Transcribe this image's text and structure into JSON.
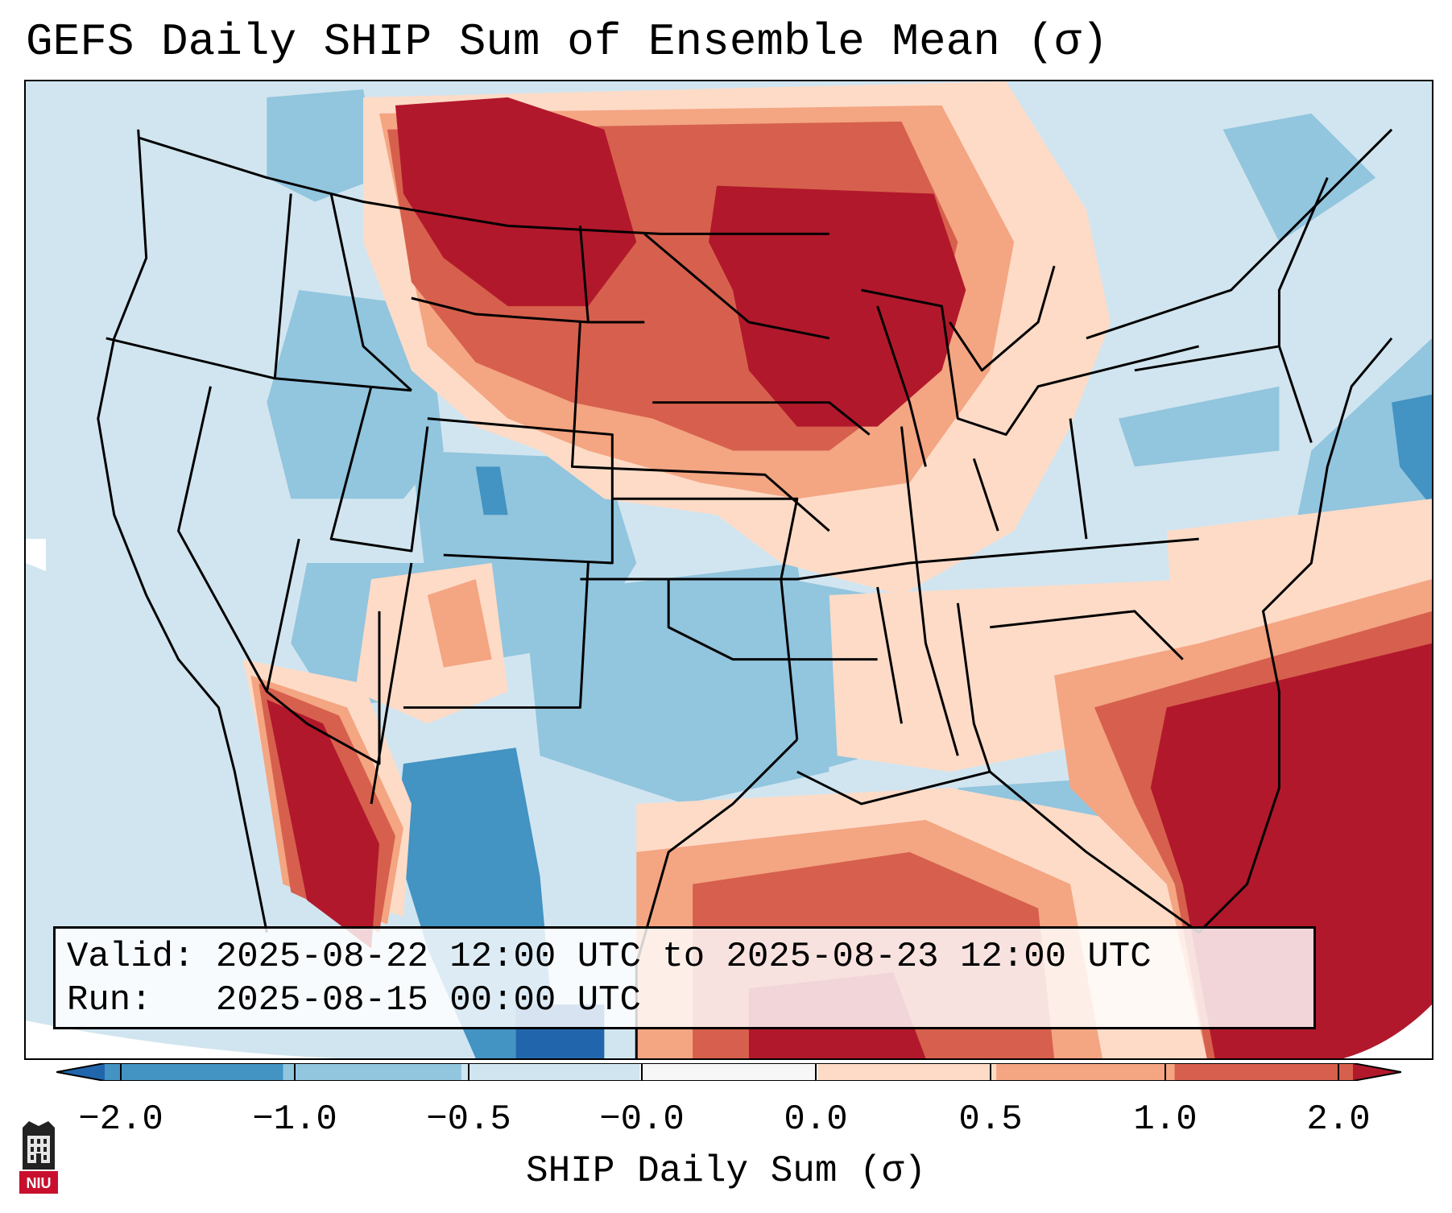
{
  "title": "GEFS Daily SHIP Sum of Ensemble Mean (σ)",
  "info": {
    "valid": "Valid: 2025-08-22 12:00 UTC to 2025-08-23 12:00 UTC",
    "run": "Run:   2025-08-15 00:00 UTC"
  },
  "colorbar": {
    "label": "SHIP Daily Sum (σ)",
    "ticks": [
      "−2.0",
      "−1.0",
      "−0.5",
      "−0.0",
      "0.0",
      "0.5",
      "1.0",
      "2.0"
    ],
    "colors": [
      "#2166ac",
      "#4393c3",
      "#92c5de",
      "#d1e5f0",
      "#f7f7f7",
      "#fddbc7",
      "#f4a582",
      "#d6604d",
      "#b2182b"
    ]
  },
  "logo": {
    "text": "NIU"
  },
  "map": {
    "background_color": "#d1e5f0",
    "regions": [
      {
        "name": "northern-plains-high",
        "value": 2.0
      },
      {
        "name": "upper-midwest-high",
        "value": 2.0
      },
      {
        "name": "southeast-atlantic-high",
        "value": 2.0
      },
      {
        "name": "gulf-of-california-high",
        "value": 2.0
      },
      {
        "name": "texas-mexico-low",
        "value": -1.0
      },
      {
        "name": "four-corners-low",
        "value": -0.5
      }
    ]
  }
}
